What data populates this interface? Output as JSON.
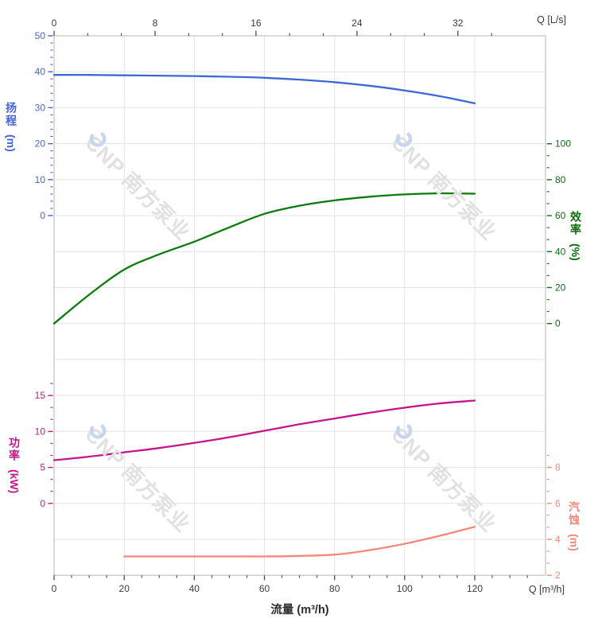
{
  "watermark": {
    "text": "CNP 南方泵业",
    "logo_icon": "cnp-swirl",
    "logo_color": "#c7d6ef",
    "text_color": "#e1e1e1"
  },
  "axis_titles": {
    "head": {
      "label": "扬程",
      "unit": "(m)"
    },
    "efficiency": {
      "label": "效率",
      "unit": "(%)"
    },
    "power": {
      "label": "功率",
      "unit": "(kW)"
    },
    "npsh": {
      "label": "汽蚀",
      "unit": "(m)"
    }
  },
  "corner_labels": {
    "top_right": "Q [L/s]",
    "bottom_right": "Q [m³/h]"
  },
  "x_axis_title": "流量 (m³/h)",
  "colors": {
    "grid": "#e4e4e4",
    "border": "#c6c6c6",
    "tick_text": "#3a3a3a"
  },
  "chart_data": {
    "type": "line",
    "title": "",
    "legend": "none",
    "grid": true,
    "x_axis": {
      "bottom_title": "流量 (m³/h)",
      "bottom_unit": "Q [m³/h]",
      "bottom_ticks": [
        0,
        20,
        40,
        60,
        80,
        100,
        120
      ],
      "bottom_minor_step": 5,
      "bottom_minor_max": 135,
      "top_unit": "Q [L/s]",
      "top_ticks": [
        0,
        8,
        16,
        24,
        32
      ],
      "top_minor_step_lps": 2.6667,
      "x_range_m3h": [
        0,
        140
      ]
    },
    "y_axes": {
      "head": {
        "title": "扬程 (m)",
        "color": "#4565d8",
        "ticks": [
          50,
          40,
          30,
          20,
          10,
          0
        ],
        "minor_step": 2,
        "range": [
          0,
          50
        ]
      },
      "efficiency": {
        "title": "效率 (%)",
        "color": "#0c6d0c",
        "ticks": [
          100,
          80,
          60,
          40,
          20,
          0
        ],
        "minor_step": 6.6667,
        "range": [
          0,
          100
        ]
      },
      "power": {
        "title": "功率 (kW)",
        "color": "#c2188e",
        "ticks": [
          15,
          10,
          5,
          0
        ],
        "minor_step": 1.6667,
        "range": [
          0,
          15
        ]
      },
      "npsh": {
        "title": "汽蚀 (m)",
        "color": "#f0887a",
        "ticks": [
          8,
          6,
          4,
          2
        ],
        "minor_step": 0.6667,
        "range": [
          2,
          8
        ]
      }
    },
    "series": [
      {
        "id": "head",
        "axis": "head",
        "color": "#3e68d8",
        "unit": "m",
        "x": [
          0,
          10,
          20,
          30,
          40,
          50,
          60,
          70,
          80,
          90,
          100,
          110,
          120
        ],
        "y": [
          39.1,
          39.1,
          39.0,
          38.9,
          38.8,
          38.6,
          38.3,
          37.8,
          37.1,
          36.1,
          34.8,
          33.2,
          31.2
        ]
      },
      {
        "id": "efficiency",
        "axis": "efficiency",
        "color": "#0b7c0b",
        "unit": "%",
        "x": [
          0,
          10,
          20,
          30,
          40,
          50,
          60,
          70,
          80,
          90,
          100,
          110,
          120
        ],
        "y": [
          0,
          16,
          30,
          38.5,
          45.5,
          53.5,
          61,
          65.5,
          68.5,
          70.5,
          71.8,
          72.4,
          72.2
        ]
      },
      {
        "id": "power",
        "axis": "power",
        "color": "#c9148f",
        "unit": "kW",
        "x": [
          0,
          10,
          20,
          30,
          40,
          50,
          60,
          70,
          80,
          90,
          100,
          110,
          120
        ],
        "y": [
          6.0,
          6.5,
          7.1,
          7.7,
          8.4,
          9.2,
          10.1,
          11.0,
          11.8,
          12.6,
          13.3,
          13.9,
          14.3
        ]
      },
      {
        "id": "npsh",
        "axis": "npsh",
        "color": "#f4897b",
        "unit": "m",
        "x": [
          20,
          30,
          40,
          50,
          60,
          70,
          80,
          90,
          100,
          110,
          120
        ],
        "y": [
          3.05,
          3.05,
          3.05,
          3.05,
          3.05,
          3.08,
          3.15,
          3.4,
          3.75,
          4.2,
          4.7
        ]
      }
    ]
  }
}
